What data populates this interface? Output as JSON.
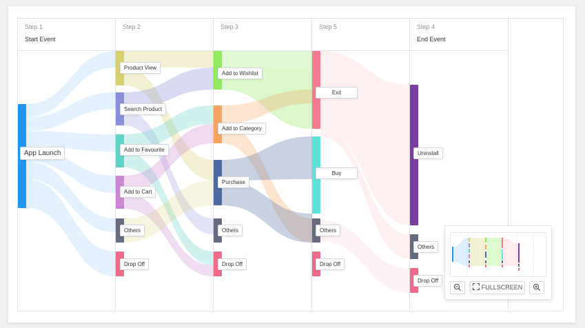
{
  "columns": [
    {
      "step": "Step 1",
      "title": "Start Event"
    },
    {
      "step": "Step 2",
      "title": ""
    },
    {
      "step": "Step 3",
      "title": ""
    },
    {
      "step": "Step 5",
      "title": ""
    },
    {
      "step": "Step 4",
      "title": "End Event"
    }
  ],
  "nodes": {
    "app_launch": "App Launch",
    "product_view": "Product View",
    "search_product": "Search Product",
    "add_to_favourite": "Add to Favourite",
    "add_to_cart": "Add to Cart",
    "others_s2": "Others",
    "dropoff_s2": "Drop Off",
    "add_to_wishlist": "Add to Wishlist",
    "add_to_category": "Add to Category",
    "purchase": "Purchase",
    "others_s3": "Others",
    "dropoff_s3": "Drop Off",
    "exit": "Exit",
    "buy": "Buy",
    "others_s5": "Others",
    "dropoff_s5": "Drop Off",
    "uninstall": "Uninstall",
    "others_s4": "Others",
    "dropoff_s4": "Drop Off"
  },
  "colors": {
    "app_launch": "#2196f3",
    "product_view": "#d7cf6e",
    "search_product": "#8a8fdc",
    "add_to_favourite": "#5fd3c6",
    "add_to_cart": "#cd86d4",
    "others": "#666b80",
    "dropoff": "#f06b8a",
    "add_to_wishlist": "#8fea5e",
    "add_to_category": "#f6a45f",
    "purchase": "#4d6aa2",
    "exit": "#f57a8f",
    "buy": "#5ee3da",
    "uninstall": "#7a3fa0"
  },
  "minimap": {
    "fullscreen_label": "FULLSCREEN",
    "zoom_out_icon": "zoom-out-icon",
    "zoom_in_icon": "zoom-in-icon",
    "fullscreen_icon": "fullscreen-icon"
  }
}
